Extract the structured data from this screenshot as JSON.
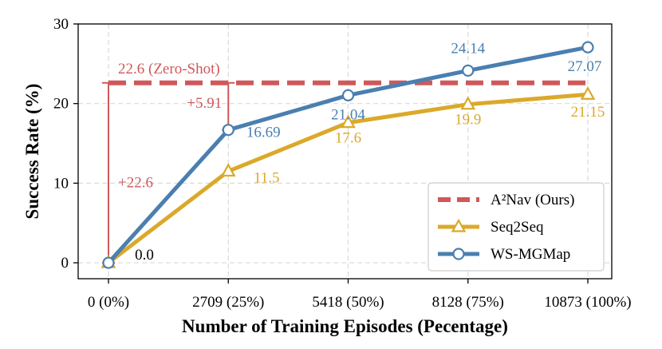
{
  "chart_data": {
    "type": "line",
    "xlabel": "Number of Training Episodes (Pecentage)",
    "ylabel": "Success Rate (%)",
    "ylim": [
      -2,
      30
    ],
    "yticks": [
      0,
      10,
      20,
      30
    ],
    "grid": true,
    "legend_position": "bottom-right",
    "categories": [
      "0 (0%)",
      "2709 (25%)",
      "5418 (50%)",
      "8128 (75%)",
      "10873 (100%)"
    ],
    "reference_line": {
      "name": "A²Nav (Ours)",
      "value": 22.6,
      "label": "22.6 (Zero-Shot)",
      "color": "#d0585a"
    },
    "series": [
      {
        "name": "Seq2Seq",
        "color": "#dba92a",
        "marker": "triangle",
        "values": [
          0.0,
          11.5,
          17.6,
          19.9,
          21.15
        ],
        "labels": [
          "",
          "11.5",
          "17.6",
          "19.9",
          "21.15"
        ]
      },
      {
        "name": "WS-MGMap",
        "color": "#4a7fb0",
        "marker": "circle",
        "values": [
          0.0,
          16.69,
          21.04,
          24.14,
          27.07
        ],
        "labels": [
          "0.0",
          "16.69",
          "21.04",
          "24.14",
          "27.07"
        ]
      }
    ],
    "annotations": [
      {
        "text": "+22.6",
        "category_index": 0,
        "from": 0.0,
        "to": 22.6
      },
      {
        "text": "+5.91",
        "category_index": 1,
        "from": 16.69,
        "to": 22.6
      }
    ]
  }
}
